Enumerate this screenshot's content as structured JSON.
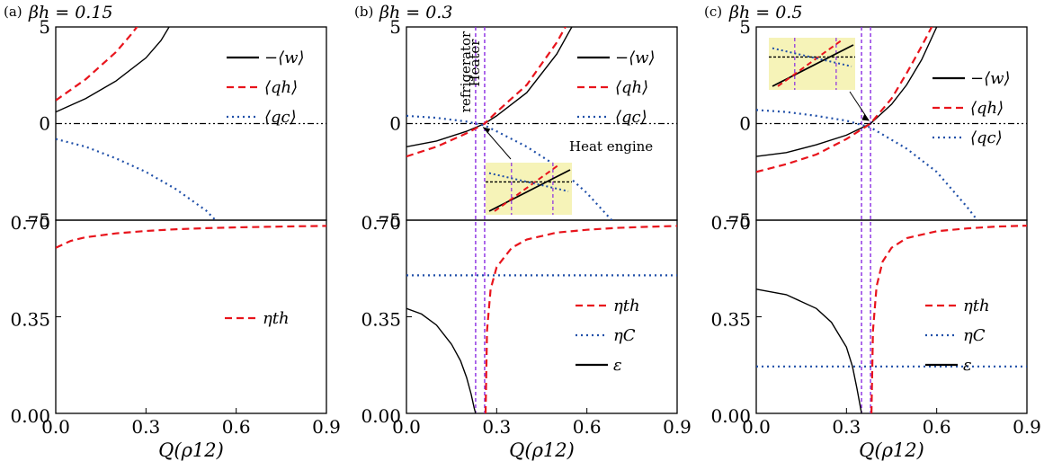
{
  "chart_data": [
    {
      "panel": "(a)",
      "title_prefix": "(a)",
      "title": "βh = 0.15",
      "xlabel": "Q(ρ12)",
      "x_ticks": [
        "0.0",
        "0.3",
        "0.6",
        "0.9"
      ],
      "xlim": [
        0,
        0.9
      ],
      "top": {
        "type": "line",
        "ylim": [
          -5,
          5
        ],
        "y_ticks": [
          "5",
          "0",
          "−5"
        ],
        "reference_line": 0,
        "series": [
          {
            "name": "−⟨w⟩",
            "color": "#000000",
            "dash": "solid",
            "x": [
              0,
              0.1,
              0.2,
              0.3,
              0.35,
              0.4
            ],
            "y": [
              0.6,
              1.3,
              2.2,
              3.4,
              4.3,
              5.6
            ]
          },
          {
            "name": "⟨qh⟩",
            "color": "#e8141c",
            "dash": "dashed",
            "x": [
              0,
              0.1,
              0.2,
              0.25,
              0.3
            ],
            "y": [
              1.2,
              2.3,
              3.7,
              4.6,
              5.6
            ]
          },
          {
            "name": "⟨qc⟩",
            "color": "#1f4fa8",
            "dash": "dotted",
            "x": [
              0,
              0.1,
              0.2,
              0.3,
              0.4,
              0.5,
              0.55
            ],
            "y": [
              -0.8,
              -1.2,
              -1.8,
              -2.5,
              -3.4,
              -4.5,
              -5.3
            ]
          }
        ]
      },
      "bottom": {
        "type": "line",
        "ylim": [
          0,
          0.7
        ],
        "y_ticks": [
          "0.70",
          "0.35",
          "0.00"
        ],
        "series": [
          {
            "name": "ηth",
            "color": "#e8141c",
            "dash": "dashed",
            "x": [
              0,
              0.05,
              0.1,
              0.2,
              0.3,
              0.4,
              0.5,
              0.6,
              0.7,
              0.8,
              0.9
            ],
            "y": [
              0.6,
              0.625,
              0.638,
              0.652,
              0.661,
              0.667,
              0.671,
              0.674,
              0.676,
              0.678,
              0.679
            ]
          }
        ]
      }
    },
    {
      "panel": "(b)",
      "title_prefix": "(b)",
      "title": "βh = 0.3",
      "xlabel": "Q(ρ12)",
      "x_ticks": [
        "0.0",
        "0.3",
        "0.6",
        "0.9"
      ],
      "xlim": [
        0,
        0.9
      ],
      "vlines": [
        0.23,
        0.26
      ],
      "annotations": [
        "refrigerator",
        "Heater",
        "Heat engine"
      ],
      "top": {
        "type": "line",
        "ylim": [
          -5,
          5
        ],
        "y_ticks": [
          "5",
          "0",
          "−5"
        ],
        "reference_line": 0,
        "series": [
          {
            "name": "−⟨w⟩",
            "color": "#000000",
            "dash": "solid",
            "x": [
              0,
              0.1,
              0.2,
              0.26,
              0.3,
              0.4,
              0.5,
              0.55
            ],
            "y": [
              -1.2,
              -0.9,
              -0.4,
              0.0,
              0.4,
              1.6,
              3.6,
              5.0
            ]
          },
          {
            "name": "⟨qh⟩",
            "color": "#e8141c",
            "dash": "dashed",
            "x": [
              0,
              0.1,
              0.2,
              0.26,
              0.3,
              0.4,
              0.5,
              0.55
            ],
            "y": [
              -1.7,
              -1.2,
              -0.5,
              0.0,
              0.6,
              2.0,
              4.2,
              5.6
            ]
          },
          {
            "name": "⟨qc⟩",
            "color": "#1f4fa8",
            "dash": "dotted",
            "x": [
              0,
              0.1,
              0.2,
              0.26,
              0.3,
              0.4,
              0.5,
              0.6,
              0.7
            ],
            "y": [
              0.4,
              0.3,
              0.1,
              -0.1,
              -0.4,
              -1.2,
              -2.2,
              -3.6,
              -5.3
            ]
          }
        ]
      },
      "bottom": {
        "type": "line",
        "ylim": [
          0,
          0.7
        ],
        "y_ticks": [
          "0.70",
          "0.35",
          "0.00"
        ],
        "series": [
          {
            "name": "ηth",
            "color": "#e8141c",
            "dash": "dashed",
            "x": [
              0.263,
              0.268,
              0.28,
              0.3,
              0.35,
              0.4,
              0.5,
              0.6,
              0.7,
              0.8,
              0.9
            ],
            "y": [
              0.0,
              0.3,
              0.45,
              0.53,
              0.6,
              0.63,
              0.655,
              0.665,
              0.672,
              0.676,
              0.679
            ]
          },
          {
            "name": "ηC",
            "color": "#1f4fa8",
            "dash": "dotted",
            "x": [
              0,
              0.9
            ],
            "y": [
              0.5,
              0.5
            ]
          },
          {
            "name": "ε",
            "color": "#000000",
            "dash": "solid",
            "x": [
              0,
              0.05,
              0.1,
              0.15,
              0.18,
              0.2,
              0.215,
              0.225,
              0.23
            ],
            "y": [
              0.38,
              0.36,
              0.32,
              0.25,
              0.19,
              0.13,
              0.07,
              0.02,
              0.0
            ]
          }
        ]
      }
    },
    {
      "panel": "(c)",
      "title_prefix": "(c)",
      "title": "βh = 0.5",
      "xlabel": "Q(ρ12)",
      "x_ticks": [
        "0.0",
        "0.3",
        "0.6",
        "0.9"
      ],
      "xlim": [
        0,
        0.9
      ],
      "vlines": [
        0.35,
        0.38
      ],
      "top": {
        "type": "line",
        "ylim": [
          -5,
          5
        ],
        "y_ticks": [
          "5",
          "0",
          "−5"
        ],
        "reference_line": 0,
        "series": [
          {
            "name": "−⟨w⟩",
            "color": "#000000",
            "dash": "solid",
            "x": [
              0,
              0.1,
              0.2,
              0.3,
              0.38,
              0.45,
              0.5,
              0.55,
              0.6
            ],
            "y": [
              -1.7,
              -1.5,
              -1.1,
              -0.6,
              0.0,
              1.0,
              2.0,
              3.3,
              5.0
            ]
          },
          {
            "name": "⟨qh⟩",
            "color": "#e8141c",
            "dash": "dashed",
            "x": [
              0,
              0.1,
              0.2,
              0.3,
              0.38,
              0.45,
              0.5,
              0.55,
              0.6
            ],
            "y": [
              -2.5,
              -2.1,
              -1.6,
              -0.8,
              0.0,
              1.3,
              2.6,
              4.0,
              5.5
            ]
          },
          {
            "name": "⟨qc⟩",
            "color": "#1f4fa8",
            "dash": "dotted",
            "x": [
              0,
              0.1,
              0.2,
              0.3,
              0.38,
              0.5,
              0.6,
              0.7,
              0.75
            ],
            "y": [
              0.7,
              0.6,
              0.4,
              0.15,
              -0.2,
              -1.3,
              -2.5,
              -4.3,
              -5.3
            ]
          }
        ]
      },
      "bottom": {
        "type": "line",
        "ylim": [
          0,
          0.7
        ],
        "y_ticks": [
          "0.70",
          "0.35",
          "0.00"
        ],
        "series": [
          {
            "name": "ηth",
            "color": "#e8141c",
            "dash": "dashed",
            "x": [
              0.383,
              0.388,
              0.4,
              0.42,
              0.45,
              0.5,
              0.6,
              0.7,
              0.8,
              0.9
            ],
            "y": [
              0.0,
              0.3,
              0.46,
              0.55,
              0.6,
              0.635,
              0.66,
              0.67,
              0.677,
              0.68
            ]
          },
          {
            "name": "ηC",
            "color": "#1f4fa8",
            "dash": "dotted",
            "x": [
              0,
              0.9
            ],
            "y": [
              0.17,
              0.17
            ]
          },
          {
            "name": "ε",
            "color": "#000000",
            "dash": "solid",
            "x": [
              0,
              0.1,
              0.2,
              0.25,
              0.3,
              0.32,
              0.335,
              0.345,
              0.35
            ],
            "y": [
              0.45,
              0.43,
              0.38,
              0.33,
              0.24,
              0.17,
              0.09,
              0.03,
              0.0
            ]
          }
        ]
      }
    }
  ]
}
